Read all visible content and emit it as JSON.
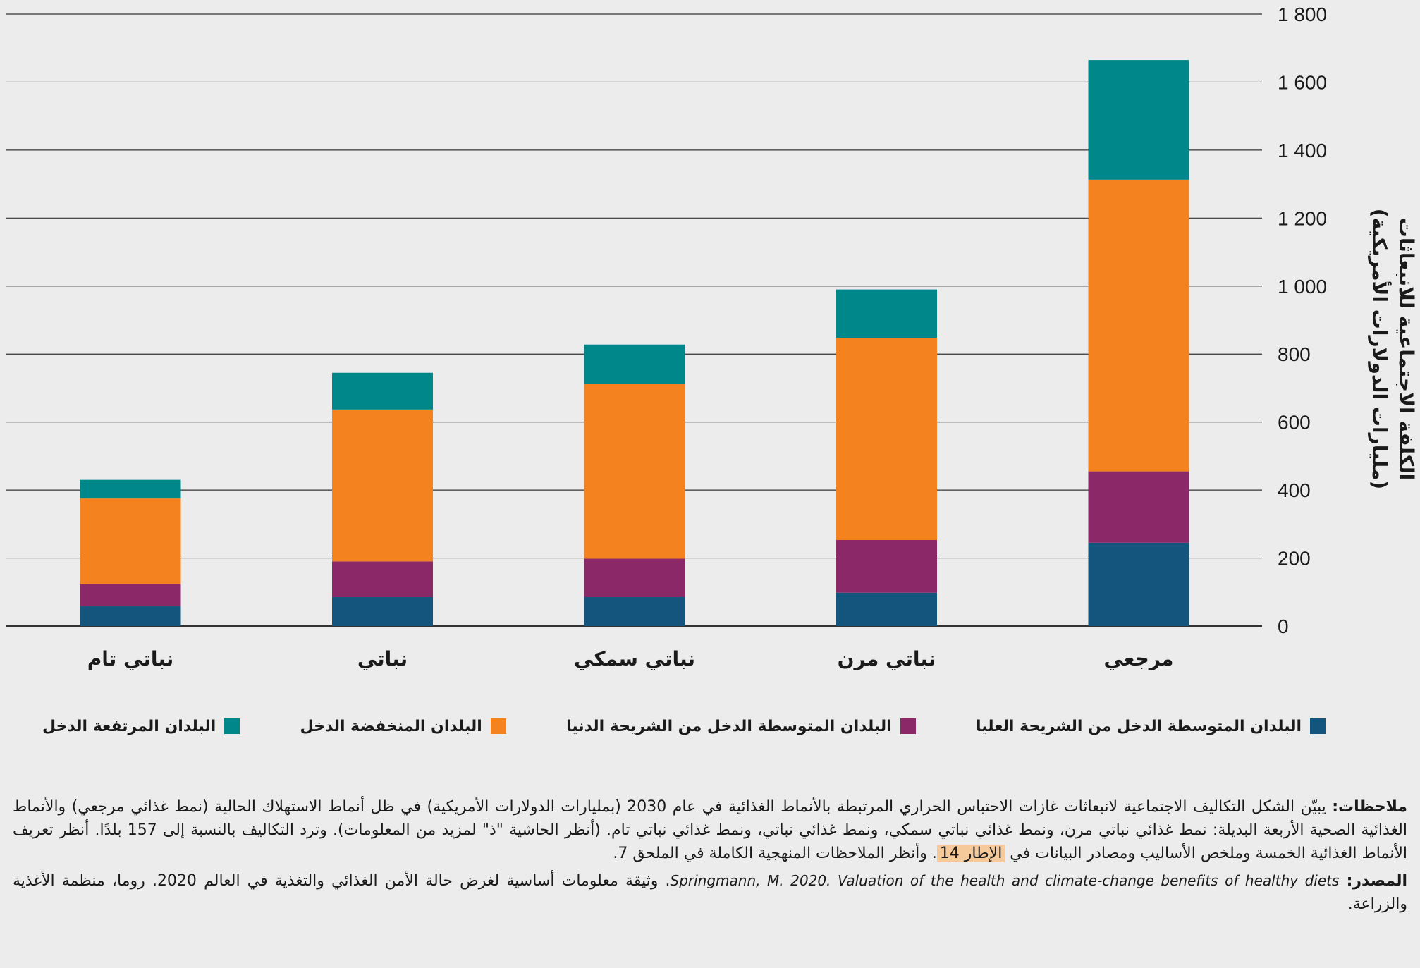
{
  "colors": {
    "high": "#00878a",
    "low": "#f4821f",
    "lower_middle": "#8b2868",
    "upper_middle": "#14557e",
    "grid": "#333333",
    "highlight": "#f6c99a"
  },
  "chart_data": {
    "type": "bar",
    "stacked": true,
    "ylabel_line1": "الكلفة الاجتماعية للانبعاثات",
    "ylabel_line2": "(مليارات الدولارات الأمريكية)",
    "ylim": [
      0,
      1800
    ],
    "yticks": [
      {
        "value": 0,
        "label": "0"
      },
      {
        "value": 200,
        "label": "200"
      },
      {
        "value": 400,
        "label": "400"
      },
      {
        "value": 600,
        "label": "600"
      },
      {
        "value": 800,
        "label": "800"
      },
      {
        "value": 1000,
        "label": "1 000"
      },
      {
        "value": 1200,
        "label": "1 200"
      },
      {
        "value": 1400,
        "label": "1 400"
      },
      {
        "value": 1600,
        "label": "1 600"
      },
      {
        "value": 1800,
        "label": "1 800"
      }
    ],
    "categories": [
      "نباتي تام",
      "نباتي",
      "نباتي سمكي",
      "نباتي مرن",
      "مرجعي"
    ],
    "series": [
      {
        "key": "upper_middle",
        "name": "البلدان المتوسطة الدخل من الشريحة العليا",
        "color": "#14557e",
        "values": [
          58,
          85,
          85,
          98,
          245
        ]
      },
      {
        "key": "lower_middle",
        "name": "البلدان المتوسطة الدخل من الشريحة الدنيا",
        "color": "#8b2868",
        "values": [
          65,
          105,
          113,
          155,
          210
        ]
      },
      {
        "key": "low",
        "name": "البلدان المنخفضة الدخل",
        "color": "#f4821f",
        "values": [
          252,
          447,
          515,
          595,
          858
        ]
      },
      {
        "key": "high",
        "name": "البلدان المرتفعة الدخل",
        "color": "#00878a",
        "values": [
          55,
          108,
          115,
          142,
          352
        ]
      }
    ],
    "legend_order": [
      "high",
      "low",
      "lower_middle",
      "upper_middle"
    ]
  },
  "legend": [
    {
      "label": "البلدان المرتفعة الدخل",
      "color": "#00878a"
    },
    {
      "label": "البلدان المنخفضة الدخل",
      "color": "#f4821f"
    },
    {
      "label": "البلدان المتوسطة الدخل من الشريحة الدنيا",
      "color": "#8b2868"
    },
    {
      "label": "البلدان المتوسطة الدخل من الشريحة العليا",
      "color": "#14557e"
    }
  ],
  "notes": {
    "notes_label": "ملاحظات:",
    "notes_text": " يبيّن الشكل التكاليف الاجتماعية لانبعاثات غازات الاحتباس الحراري المرتبطة بالأنماط الغذائية في عام 2030 (بمليارات الدولارات الأمريكية) في ظل أنماط الاستهلاك الحالية (نمط غذائي مرجعي) والأنماط الغذائية الصحية الأربعة البديلة: نمط غذائي نباتي مرن، ونمط غذائي نباتي سمكي، ونمط غذائي نباتي، ونمط غذائي نباتي تام. (أنظر الحاشية \"ذ\" لمزيد من المعلومات). وترد التكاليف بالنسبة إلى 157 بلدًا. أنظر تعريف الأنماط الغذائية الخمسة وملخص الأساليب ومصادر البيانات في ",
    "notes_box_ref": "الإطار 14",
    "notes_tail": ". وأنظر الملاحظات المنهجية الكاملة في الملحق 7.",
    "source_label": "المصدر:",
    "source_english": "Springmann, M. 2020. Valuation of the health and climate-change benefits of healthy diets",
    "source_arabic": ". وثيقة معلومات أساسية لغرض حالة الأمن الغذائي والتغذية في العالم 2020. روما، منظمة الأغذية والزراعة."
  }
}
